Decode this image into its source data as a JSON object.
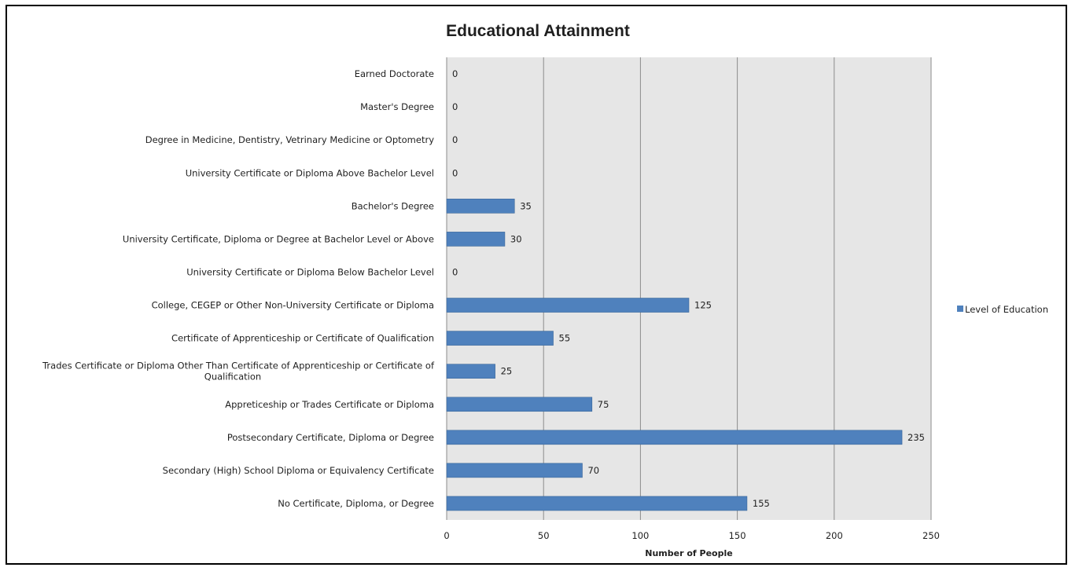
{
  "chart_data": {
    "type": "bar",
    "orientation": "horizontal",
    "title": "Educational Attainment",
    "xlabel": "Number of People",
    "ylabel": "",
    "xlim": [
      0,
      250
    ],
    "x_ticks": [
      "0",
      "50",
      "100",
      "150",
      "200",
      "250"
    ],
    "grid": true,
    "legend_position": "right",
    "categories": [
      "Earned Doctorate",
      "Master's Degree",
      "Degree in Medicine, Dentistry, Vetrinary Medicine or Optometry",
      "University Certificate or Diploma Above Bachelor Level",
      "Bachelor's Degree",
      "University Certificate, Diploma or Degree at Bachelor Level or Above",
      "University Certificate or Diploma Below Bachelor Level",
      "College, CEGEP or Other Non-University Certificate or Diploma",
      "Certificate of Apprenticeship or Certificate of Qualification",
      "Trades Certificate or Diploma Other Than Certificate of Apprenticeship or Certificate of Qualification",
      "Appreticeship or Trades Certificate or Diploma",
      "Postsecondary Certificate, Diploma or Degree",
      "Secondary (High) School Diploma or Equivalency Certificate",
      "No Certificate, Diploma, or Degree"
    ],
    "series": [
      {
        "name": "Level of Education",
        "color": "#4f81bd",
        "values": [
          0,
          0,
          0,
          0,
          35,
          30,
          0,
          125,
          55,
          25,
          75,
          235,
          70,
          155
        ]
      }
    ],
    "plot_background": "#e6e6e6",
    "gridline_color": "#8c8c8c"
  }
}
